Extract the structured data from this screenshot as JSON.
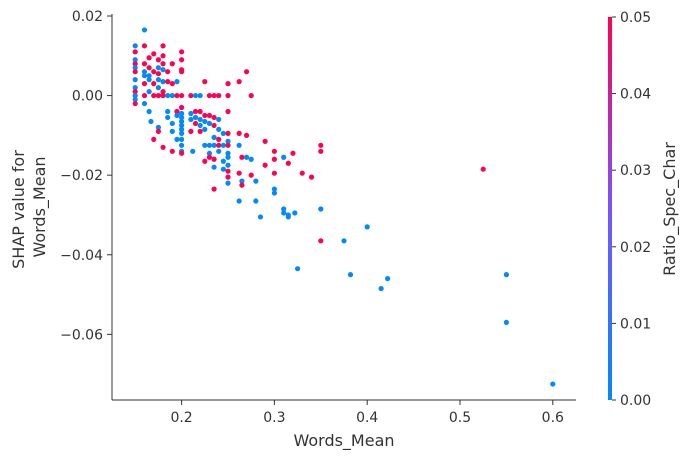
{
  "chart_data": {
    "type": "scatter",
    "title": "",
    "xlabel": "Words_Mean",
    "ylabel_lines": [
      "SHAP value for",
      "Words_Mean"
    ],
    "colorbar_label": "Ratio_Spec_Char",
    "xlim": [
      0.125,
      0.625
    ],
    "ylim": [
      -0.0765,
      0.0205
    ],
    "x_ticks": [
      0.2,
      0.3,
      0.4,
      0.5,
      0.6
    ],
    "x_tick_labels": [
      "0.2",
      "0.3",
      "0.4",
      "0.5",
      "0.6"
    ],
    "y_ticks": [
      0.02,
      0.0,
      -0.02,
      -0.04,
      -0.06
    ],
    "y_tick_labels": [
      "0.02",
      "0.00",
      "−0.02",
      "−0.04",
      "−0.06"
    ],
    "colorbar_range": [
      0.0,
      0.05
    ],
    "colorbar_ticks": [
      0.0,
      0.01,
      0.02,
      0.03,
      0.04,
      0.05
    ],
    "colorbar_tick_labels": [
      "0.00",
      "0.01",
      "0.02",
      "0.03",
      "0.04",
      "0.05"
    ],
    "colormap": {
      "low": "#008afb",
      "mid": "#7c52ff",
      "high": "#ff0052"
    },
    "grid": false,
    "points": [
      {
        "x": 0.15,
        "y": 0.0125,
        "c": 0.0
      },
      {
        "x": 0.15,
        "y": 0.011,
        "c": 0.05
      },
      {
        "x": 0.15,
        "y": 0.009,
        "c": 0.0
      },
      {
        "x": 0.15,
        "y": 0.008,
        "c": 0.05
      },
      {
        "x": 0.15,
        "y": 0.007,
        "c": 0.0
      },
      {
        "x": 0.15,
        "y": 0.006,
        "c": 0.05
      },
      {
        "x": 0.15,
        "y": 0.004,
        "c": 0.0
      },
      {
        "x": 0.15,
        "y": 0.002,
        "c": 0.0
      },
      {
        "x": 0.15,
        "y": 0.001,
        "c": 0.05
      },
      {
        "x": 0.15,
        "y": 0.0,
        "c": 0.0
      },
      {
        "x": 0.15,
        "y": -0.001,
        "c": 0.0
      },
      {
        "x": 0.15,
        "y": -0.002,
        "c": 0.05
      },
      {
        "x": 0.16,
        "y": 0.0165,
        "c": 0.0
      },
      {
        "x": 0.16,
        "y": 0.0125,
        "c": 0.05
      },
      {
        "x": 0.16,
        "y": 0.008,
        "c": 0.05
      },
      {
        "x": 0.16,
        "y": 0.006,
        "c": 0.0
      },
      {
        "x": 0.16,
        "y": 0.005,
        "c": 0.0
      },
      {
        "x": 0.16,
        "y": 0.003,
        "c": 0.05
      },
      {
        "x": 0.16,
        "y": 0.0,
        "c": 0.05
      },
      {
        "x": 0.16,
        "y": -0.002,
        "c": 0.0
      },
      {
        "x": 0.165,
        "y": 0.0095,
        "c": 0.05
      },
      {
        "x": 0.165,
        "y": 0.007,
        "c": 0.05
      },
      {
        "x": 0.165,
        "y": 0.005,
        "c": 0.0
      },
      {
        "x": 0.165,
        "y": 0.004,
        "c": 0.0
      },
      {
        "x": 0.165,
        "y": 0.001,
        "c": 0.0
      },
      {
        "x": 0.165,
        "y": -0.004,
        "c": 0.0
      },
      {
        "x": 0.167,
        "y": -0.0065,
        "c": 0.0
      },
      {
        "x": 0.17,
        "y": 0.0105,
        "c": 0.05
      },
      {
        "x": 0.17,
        "y": 0.006,
        "c": 0.05
      },
      {
        "x": 0.17,
        "y": 0.003,
        "c": 0.05
      },
      {
        "x": 0.17,
        "y": 0.0,
        "c": 0.05
      },
      {
        "x": 0.17,
        "y": -0.011,
        "c": 0.05
      },
      {
        "x": 0.175,
        "y": 0.009,
        "c": 0.05
      },
      {
        "x": 0.175,
        "y": 0.007,
        "c": 0.0
      },
      {
        "x": 0.175,
        "y": 0.0055,
        "c": 0.05
      },
      {
        "x": 0.175,
        "y": 0.004,
        "c": 0.0
      },
      {
        "x": 0.175,
        "y": 0.002,
        "c": 0.0
      },
      {
        "x": 0.175,
        "y": 0.0,
        "c": 0.05
      },
      {
        "x": 0.175,
        "y": -0.008,
        "c": 0.0
      },
      {
        "x": 0.175,
        "y": -0.009,
        "c": 0.05
      },
      {
        "x": 0.18,
        "y": 0.0125,
        "c": 0.05
      },
      {
        "x": 0.18,
        "y": 0.01,
        "c": 0.05
      },
      {
        "x": 0.18,
        "y": 0.008,
        "c": 0.05
      },
      {
        "x": 0.18,
        "y": 0.0065,
        "c": 0.0
      },
      {
        "x": 0.18,
        "y": 0.0035,
        "c": 0.0
      },
      {
        "x": 0.18,
        "y": 0.001,
        "c": 0.05
      },
      {
        "x": 0.18,
        "y": 0.0,
        "c": 0.05
      },
      {
        "x": 0.18,
        "y": -0.013,
        "c": 0.05
      },
      {
        "x": 0.185,
        "y": 0.006,
        "c": 0.05
      },
      {
        "x": 0.185,
        "y": 0.0035,
        "c": 0.05
      },
      {
        "x": 0.185,
        "y": 0.0,
        "c": 0.0
      },
      {
        "x": 0.185,
        "y": -0.004,
        "c": 0.0
      },
      {
        "x": 0.185,
        "y": -0.0055,
        "c": 0.0
      },
      {
        "x": 0.19,
        "y": 0.008,
        "c": 0.05
      },
      {
        "x": 0.19,
        "y": 0.003,
        "c": 0.05
      },
      {
        "x": 0.19,
        "y": 0.0,
        "c": 0.0
      },
      {
        "x": 0.19,
        "y": -0.007,
        "c": 0.0
      },
      {
        "x": 0.19,
        "y": -0.009,
        "c": 0.0
      },
      {
        "x": 0.19,
        "y": -0.014,
        "c": 0.05
      },
      {
        "x": 0.195,
        "y": 0.0035,
        "c": 0.0
      },
      {
        "x": 0.195,
        "y": 0.0,
        "c": 0.05
      },
      {
        "x": 0.195,
        "y": -0.004,
        "c": 0.05
      },
      {
        "x": 0.195,
        "y": -0.005,
        "c": 0.0
      },
      {
        "x": 0.195,
        "y": -0.011,
        "c": 0.0
      },
      {
        "x": 0.2,
        "y": 0.011,
        "c": 0.05
      },
      {
        "x": 0.2,
        "y": 0.009,
        "c": 0.05
      },
      {
        "x": 0.2,
        "y": 0.0065,
        "c": 0.05
      },
      {
        "x": 0.2,
        "y": 0.006,
        "c": 0.05
      },
      {
        "x": 0.2,
        "y": 0.0,
        "c": 0.05
      },
      {
        "x": 0.2,
        "y": -0.003,
        "c": 0.05
      },
      {
        "x": 0.2,
        "y": -0.0045,
        "c": 0.0
      },
      {
        "x": 0.2,
        "y": -0.0055,
        "c": 0.0
      },
      {
        "x": 0.2,
        "y": -0.0065,
        "c": 0.0
      },
      {
        "x": 0.2,
        "y": -0.0075,
        "c": 0.0
      },
      {
        "x": 0.2,
        "y": -0.0085,
        "c": 0.0
      },
      {
        "x": 0.2,
        "y": -0.0095,
        "c": 0.0
      },
      {
        "x": 0.2,
        "y": -0.011,
        "c": 0.0
      },
      {
        "x": 0.2,
        "y": -0.0125,
        "c": 0.0
      },
      {
        "x": 0.2,
        "y": -0.014,
        "c": 0.0
      },
      {
        "x": 0.2,
        "y": -0.0145,
        "c": 0.05
      },
      {
        "x": 0.21,
        "y": 0.0,
        "c": 0.05
      },
      {
        "x": 0.21,
        "y": -0.0045,
        "c": 0.0
      },
      {
        "x": 0.21,
        "y": -0.006,
        "c": 0.0
      },
      {
        "x": 0.21,
        "y": -0.009,
        "c": 0.05
      },
      {
        "x": 0.212,
        "y": -0.014,
        "c": 0.0
      },
      {
        "x": 0.215,
        "y": 0.0,
        "c": 0.0
      },
      {
        "x": 0.215,
        "y": -0.004,
        "c": 0.05
      },
      {
        "x": 0.215,
        "y": -0.0055,
        "c": 0.0
      },
      {
        "x": 0.215,
        "y": -0.007,
        "c": 0.05
      },
      {
        "x": 0.22,
        "y": 0.0,
        "c": 0.0
      },
      {
        "x": 0.22,
        "y": -0.004,
        "c": 0.05
      },
      {
        "x": 0.22,
        "y": -0.006,
        "c": 0.0
      },
      {
        "x": 0.22,
        "y": -0.0075,
        "c": 0.0
      },
      {
        "x": 0.22,
        "y": -0.009,
        "c": 0.05
      },
      {
        "x": 0.225,
        "y": 0.0035,
        "c": 0.05
      },
      {
        "x": 0.225,
        "y": -0.005,
        "c": 0.05
      },
      {
        "x": 0.225,
        "y": -0.0065,
        "c": 0.0
      },
      {
        "x": 0.225,
        "y": -0.0085,
        "c": 0.0
      },
      {
        "x": 0.225,
        "y": -0.0125,
        "c": 0.0
      },
      {
        "x": 0.225,
        "y": -0.0165,
        "c": 0.05
      },
      {
        "x": 0.23,
        "y": 0.0,
        "c": 0.05
      },
      {
        "x": 0.23,
        "y": -0.005,
        "c": 0.05
      },
      {
        "x": 0.23,
        "y": -0.007,
        "c": 0.0
      },
      {
        "x": 0.23,
        "y": -0.0125,
        "c": 0.0
      },
      {
        "x": 0.23,
        "y": -0.0145,
        "c": 0.0
      },
      {
        "x": 0.23,
        "y": -0.0155,
        "c": 0.05
      },
      {
        "x": 0.235,
        "y": 0.0,
        "c": 0.05
      },
      {
        "x": 0.235,
        "y": -0.0055,
        "c": 0.05
      },
      {
        "x": 0.235,
        "y": -0.0075,
        "c": 0.05
      },
      {
        "x": 0.235,
        "y": -0.0105,
        "c": 0.0
      },
      {
        "x": 0.235,
        "y": -0.0125,
        "c": 0.0
      },
      {
        "x": 0.235,
        "y": -0.016,
        "c": 0.05
      },
      {
        "x": 0.235,
        "y": -0.018,
        "c": 0.0
      },
      {
        "x": 0.235,
        "y": -0.0235,
        "c": 0.05
      },
      {
        "x": 0.24,
        "y": 0.0,
        "c": 0.05
      },
      {
        "x": 0.24,
        "y": -0.006,
        "c": 0.0
      },
      {
        "x": 0.24,
        "y": -0.0085,
        "c": 0.0
      },
      {
        "x": 0.24,
        "y": -0.011,
        "c": 0.05
      },
      {
        "x": 0.24,
        "y": -0.0125,
        "c": 0.05
      },
      {
        "x": 0.24,
        "y": -0.014,
        "c": 0.0
      },
      {
        "x": 0.245,
        "y": -0.0095,
        "c": 0.0
      },
      {
        "x": 0.245,
        "y": -0.0125,
        "c": 0.0
      },
      {
        "x": 0.245,
        "y": -0.0165,
        "c": 0.0
      },
      {
        "x": 0.245,
        "y": -0.0185,
        "c": 0.0
      },
      {
        "x": 0.25,
        "y": 0.003,
        "c": 0.05
      },
      {
        "x": 0.25,
        "y": 0.0,
        "c": 0.05
      },
      {
        "x": 0.25,
        "y": -0.004,
        "c": 0.05
      },
      {
        "x": 0.25,
        "y": -0.0095,
        "c": 0.05
      },
      {
        "x": 0.25,
        "y": -0.0115,
        "c": 0.0
      },
      {
        "x": 0.25,
        "y": -0.0125,
        "c": 0.05
      },
      {
        "x": 0.25,
        "y": -0.0145,
        "c": 0.0
      },
      {
        "x": 0.25,
        "y": -0.0155,
        "c": 0.0
      },
      {
        "x": 0.25,
        "y": -0.0175,
        "c": 0.0
      },
      {
        "x": 0.25,
        "y": -0.019,
        "c": 0.05
      },
      {
        "x": 0.25,
        "y": -0.0205,
        "c": 0.05
      },
      {
        "x": 0.25,
        "y": -0.022,
        "c": 0.0
      },
      {
        "x": 0.262,
        "y": 0.0035,
        "c": 0.05
      },
      {
        "x": 0.262,
        "y": -0.0095,
        "c": 0.05
      },
      {
        "x": 0.262,
        "y": -0.0125,
        "c": 0.0
      },
      {
        "x": 0.262,
        "y": -0.0195,
        "c": 0.05
      },
      {
        "x": 0.262,
        "y": -0.0265,
        "c": 0.0
      },
      {
        "x": 0.265,
        "y": -0.0155,
        "c": 0.05
      },
      {
        "x": 0.265,
        "y": -0.0215,
        "c": 0.0
      },
      {
        "x": 0.265,
        "y": -0.0225,
        "c": 0.05
      },
      {
        "x": 0.27,
        "y": 0.006,
        "c": 0.05
      },
      {
        "x": 0.27,
        "y": -0.01,
        "c": 0.05
      },
      {
        "x": 0.27,
        "y": -0.0155,
        "c": 0.0
      },
      {
        "x": 0.275,
        "y": 0.0,
        "c": 0.05
      },
      {
        "x": 0.275,
        "y": -0.016,
        "c": 0.0
      },
      {
        "x": 0.275,
        "y": -0.02,
        "c": 0.05
      },
      {
        "x": 0.28,
        "y": -0.0215,
        "c": 0.0
      },
      {
        "x": 0.28,
        "y": -0.0265,
        "c": 0.0
      },
      {
        "x": 0.285,
        "y": -0.0305,
        "c": 0.0
      },
      {
        "x": 0.29,
        "y": -0.0115,
        "c": 0.05
      },
      {
        "x": 0.29,
        "y": -0.0175,
        "c": 0.05
      },
      {
        "x": 0.3,
        "y": -0.014,
        "c": 0.05
      },
      {
        "x": 0.3,
        "y": -0.016,
        "c": 0.05
      },
      {
        "x": 0.3,
        "y": -0.0195,
        "c": 0.05
      },
      {
        "x": 0.3,
        "y": -0.0235,
        "c": 0.0
      },
      {
        "x": 0.3,
        "y": -0.0245,
        "c": 0.0
      },
      {
        "x": 0.31,
        "y": -0.0155,
        "c": 0.0
      },
      {
        "x": 0.31,
        "y": -0.0285,
        "c": 0.0
      },
      {
        "x": 0.31,
        "y": -0.0295,
        "c": 0.0
      },
      {
        "x": 0.315,
        "y": -0.017,
        "c": 0.05
      },
      {
        "x": 0.315,
        "y": -0.03,
        "c": 0.0
      },
      {
        "x": 0.315,
        "y": -0.0305,
        "c": 0.0
      },
      {
        "x": 0.32,
        "y": -0.0145,
        "c": 0.05
      },
      {
        "x": 0.322,
        "y": -0.0295,
        "c": 0.0
      },
      {
        "x": 0.325,
        "y": -0.0435,
        "c": 0.0
      },
      {
        "x": 0.33,
        "y": -0.0195,
        "c": 0.05
      },
      {
        "x": 0.34,
        "y": -0.0205,
        "c": 0.05
      },
      {
        "x": 0.35,
        "y": -0.0125,
        "c": 0.05
      },
      {
        "x": 0.35,
        "y": -0.014,
        "c": 0.05
      },
      {
        "x": 0.35,
        "y": -0.0285,
        "c": 0.0
      },
      {
        "x": 0.35,
        "y": -0.0365,
        "c": 0.05
      },
      {
        "x": 0.375,
        "y": -0.0365,
        "c": 0.0
      },
      {
        "x": 0.382,
        "y": -0.045,
        "c": 0.0
      },
      {
        "x": 0.4,
        "y": -0.033,
        "c": 0.0
      },
      {
        "x": 0.415,
        "y": -0.0485,
        "c": 0.0
      },
      {
        "x": 0.422,
        "y": -0.046,
        "c": 0.0
      },
      {
        "x": 0.525,
        "y": -0.0185,
        "c": 0.05
      },
      {
        "x": 0.55,
        "y": -0.045,
        "c": 0.0
      },
      {
        "x": 0.55,
        "y": -0.057,
        "c": 0.0
      },
      {
        "x": 0.6,
        "y": -0.0725,
        "c": 0.0
      }
    ]
  }
}
